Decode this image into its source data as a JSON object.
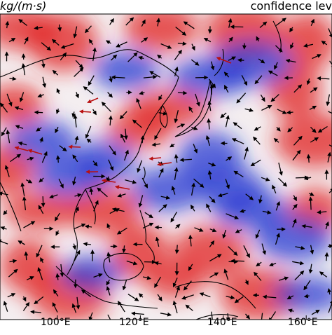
{
  "header": {
    "unit_label": "kg/(m·s)",
    "confidence_label": "confidence lev"
  },
  "chart_data": {
    "type": "map",
    "xticks": [
      "100°E",
      "120°E",
      "140°E",
      "160°E"
    ],
    "xtick_values": [
      100,
      120,
      140,
      160
    ]
  },
  "colors": {
    "positive": "#e02020",
    "negative": "#2030d0",
    "significant_vector": "#b81010",
    "vector": "#000000",
    "coastline": "#000000"
  }
}
